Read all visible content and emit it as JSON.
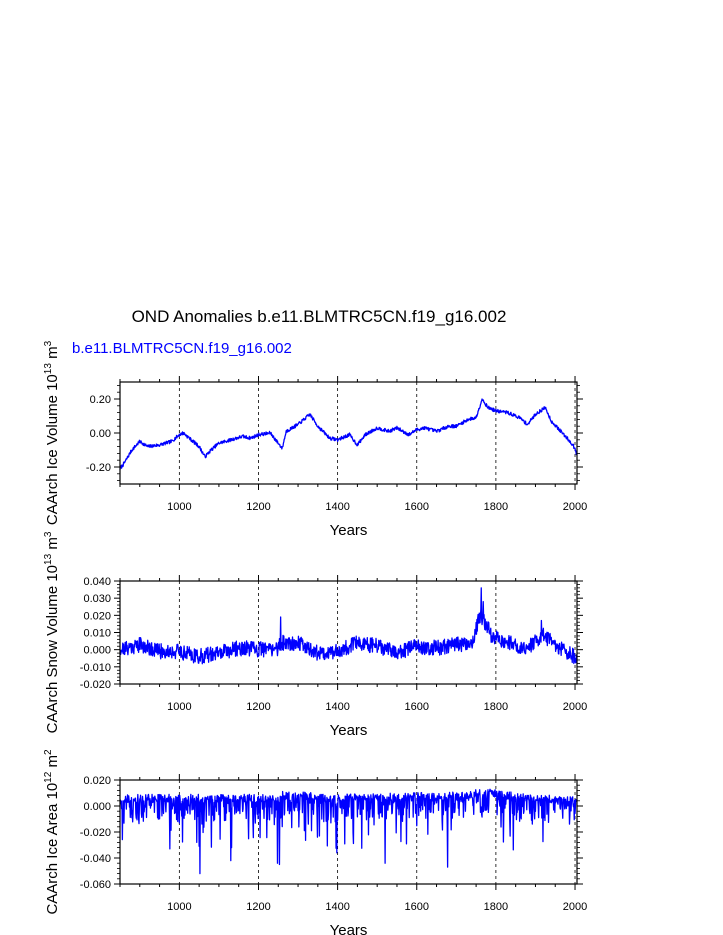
{
  "figure": {
    "title": "OND Anomalies b.e11.BLMTRC5CN.f19_g16.002",
    "subtitle": "b.e11.BLMTRC5CN.f19_g16.002",
    "series_color": "#0000ff"
  },
  "chart_data": [
    {
      "type": "line",
      "title": "",
      "xlabel": "Years",
      "ylabel": "CAArch Ice Volume 10 m",
      "ylabel_sup_exp": "13",
      "ylabel_sup_unit": "3",
      "xlim": [
        850,
        2005
      ],
      "ylim": [
        -0.3,
        0.3
      ],
      "xticks": [
        1000,
        1200,
        1400,
        1600,
        1800,
        2000
      ],
      "yticks": [
        -0.2,
        0.0,
        0.2
      ],
      "ytick_labels": [
        "-0.20",
        "0.00",
        "0.20"
      ],
      "grid_x": "dashed vertical at major ticks",
      "anchors": [
        [
          850,
          -0.21
        ],
        [
          860,
          -0.18
        ],
        [
          880,
          -0.1
        ],
        [
          900,
          -0.05
        ],
        [
          920,
          -0.08
        ],
        [
          950,
          -0.07
        ],
        [
          980,
          -0.05
        ],
        [
          1000,
          -0.01
        ],
        [
          1010,
          0.0
        ],
        [
          1030,
          -0.04
        ],
        [
          1050,
          -0.08
        ],
        [
          1065,
          -0.14
        ],
        [
          1080,
          -0.1
        ],
        [
          1100,
          -0.06
        ],
        [
          1130,
          -0.04
        ],
        [
          1160,
          -0.02
        ],
        [
          1180,
          -0.03
        ],
        [
          1200,
          -0.01
        ],
        [
          1230,
          0.0
        ],
        [
          1250,
          -0.06
        ],
        [
          1260,
          -0.09
        ],
        [
          1270,
          0.01
        ],
        [
          1300,
          0.05
        ],
        [
          1330,
          0.11
        ],
        [
          1350,
          0.04
        ],
        [
          1380,
          -0.03
        ],
        [
          1400,
          -0.04
        ],
        [
          1430,
          -0.01
        ],
        [
          1450,
          -0.07
        ],
        [
          1470,
          -0.01
        ],
        [
          1500,
          0.03
        ],
        [
          1530,
          0.01
        ],
        [
          1550,
          0.03
        ],
        [
          1580,
          -0.01
        ],
        [
          1600,
          0.02
        ],
        [
          1620,
          0.03
        ],
        [
          1650,
          0.01
        ],
        [
          1680,
          0.04
        ],
        [
          1700,
          0.04
        ],
        [
          1730,
          0.08
        ],
        [
          1750,
          0.09
        ],
        [
          1765,
          0.2
        ],
        [
          1780,
          0.15
        ],
        [
          1800,
          0.13
        ],
        [
          1830,
          0.12
        ],
        [
          1860,
          0.09
        ],
        [
          1880,
          0.05
        ],
        [
          1900,
          0.11
        ],
        [
          1925,
          0.15
        ],
        [
          1940,
          0.07
        ],
        [
          1960,
          0.02
        ],
        [
          1980,
          -0.03
        ],
        [
          1995,
          -0.07
        ],
        [
          2004,
          -0.12
        ]
      ],
      "noise": 0.01,
      "seed": 7
    },
    {
      "type": "line",
      "title": "",
      "xlabel": "Years",
      "ylabel": "CAArch Snow Volume 10 m",
      "ylabel_sup_exp": "13",
      "ylabel_sup_unit": "3",
      "xlim": [
        850,
        2005
      ],
      "ylim": [
        -0.02,
        0.04
      ],
      "xticks": [
        1000,
        1200,
        1400,
        1600,
        1800,
        2000
      ],
      "yticks": [
        -0.02,
        -0.01,
        0.0,
        0.01,
        0.02,
        0.03,
        0.04
      ],
      "ytick_labels": [
        "-0.020",
        "-0.010",
        "0.000",
        "0.010",
        "0.020",
        "0.030",
        "0.040"
      ],
      "grid_x": "dashed vertical at major ticks",
      "anchors": [
        [
          850,
          0.0
        ],
        [
          900,
          0.003
        ],
        [
          950,
          -0.001
        ],
        [
          1000,
          -0.001
        ],
        [
          1050,
          -0.004
        ],
        [
          1100,
          -0.002
        ],
        [
          1150,
          0.001
        ],
        [
          1200,
          0.0
        ],
        [
          1250,
          0.001
        ],
        [
          1260,
          0.004
        ],
        [
          1300,
          0.004
        ],
        [
          1350,
          -0.002
        ],
        [
          1400,
          -0.001
        ],
        [
          1450,
          0.004
        ],
        [
          1500,
          0.002
        ],
        [
          1550,
          -0.002
        ],
        [
          1600,
          0.002
        ],
        [
          1650,
          0.001
        ],
        [
          1700,
          0.003
        ],
        [
          1740,
          0.004
        ],
        [
          1760,
          0.02
        ],
        [
          1770,
          0.016
        ],
        [
          1790,
          0.008
        ],
        [
          1830,
          0.004
        ],
        [
          1880,
          0.001
        ],
        [
          1920,
          0.008
        ],
        [
          1960,
          0.001
        ],
        [
          2004,
          -0.005
        ]
      ],
      "spikes": [
        [
          1763,
          0.036
        ],
        [
          1256,
          0.019
        ],
        [
          1915,
          0.017
        ],
        [
          1768,
          0.028
        ]
      ],
      "noise": 0.0045,
      "seed": 21
    },
    {
      "type": "line",
      "title": "",
      "xlabel": "Years",
      "ylabel": "CAArch Ice Area 10 m",
      "ylabel_sup_exp": "12",
      "ylabel_sup_unit": "2",
      "xlim": [
        850,
        2005
      ],
      "ylim": [
        -0.06,
        0.02
      ],
      "xticks": [
        1000,
        1200,
        1400,
        1600,
        1800,
        2000
      ],
      "yticks": [
        -0.06,
        -0.04,
        -0.02,
        0.0,
        0.02
      ],
      "ytick_labels": [
        "-0.060",
        "-0.040",
        "-0.020",
        "0.000",
        "0.020"
      ],
      "grid_x": "dashed vertical at major ticks",
      "anchors": [
        [
          850,
          0.006
        ],
        [
          1250,
          0.006
        ],
        [
          1270,
          0.01
        ],
        [
          1300,
          0.008
        ],
        [
          1400,
          0.006
        ],
        [
          1700,
          0.008
        ],
        [
          1790,
          0.011
        ],
        [
          1850,
          0.007
        ],
        [
          2004,
          0.004
        ]
      ],
      "spikes": [
        [
          1052,
          -0.052
        ],
        [
          1678,
          -0.047
        ],
        [
          1253,
          -0.045
        ],
        [
          1130,
          -0.042
        ],
        [
          1520,
          -0.044
        ],
        [
          1398,
          -0.036
        ],
        [
          1248,
          -0.044
        ]
      ],
      "drop_prob": 0.55,
      "drop_scale": 0.018,
      "noise": 0.003,
      "seed": 5
    }
  ]
}
